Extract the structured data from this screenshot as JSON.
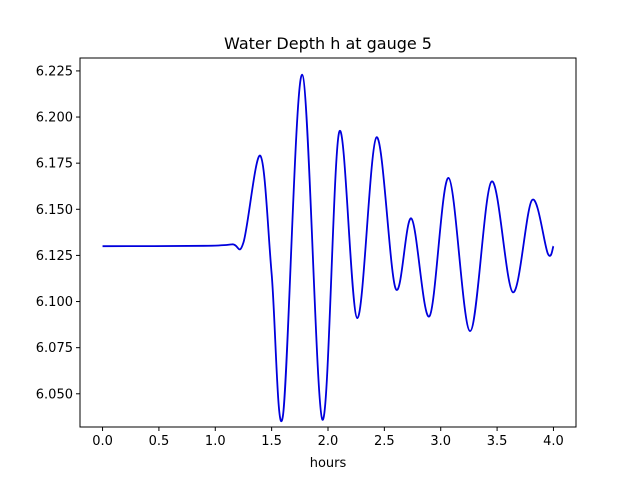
{
  "chart_data": {
    "type": "line",
    "title": "Water Depth h at gauge 5",
    "xlabel": "hours",
    "ylabel": "",
    "xlim": [
      -0.2,
      4.2
    ],
    "ylim": [
      6.032,
      6.232
    ],
    "x_ticks": [
      0.0,
      0.5,
      1.0,
      1.5,
      2.0,
      2.5,
      3.0,
      3.5,
      4.0
    ],
    "x_tick_labels": [
      "0.0",
      "0.5",
      "1.0",
      "1.5",
      "2.0",
      "2.5",
      "3.0",
      "3.5",
      "4.0"
    ],
    "y_ticks": [
      6.05,
      6.075,
      6.1,
      6.125,
      6.15,
      6.175,
      6.2,
      6.225
    ],
    "y_tick_labels": [
      "6.050",
      "6.075",
      "6.100",
      "6.125",
      "6.150",
      "6.175",
      "6.200",
      "6.225"
    ],
    "grid": false,
    "series": [
      {
        "color": "#0000dd",
        "x": [
          0.0,
          0.9,
          1.15,
          1.25,
          1.4,
          1.5,
          1.6,
          1.77,
          1.95,
          2.1,
          2.26,
          2.43,
          2.6,
          2.74,
          2.9,
          3.07,
          3.26,
          3.45,
          3.64,
          3.81,
          3.95,
          4.0
        ],
        "y": [
          6.13,
          6.1302,
          6.131,
          6.132,
          6.179,
          6.115,
          6.038,
          6.223,
          6.036,
          6.192,
          6.091,
          6.189,
          6.107,
          6.145,
          6.092,
          6.167,
          6.084,
          6.165,
          6.105,
          6.155,
          6.126,
          6.13
        ]
      }
    ]
  }
}
